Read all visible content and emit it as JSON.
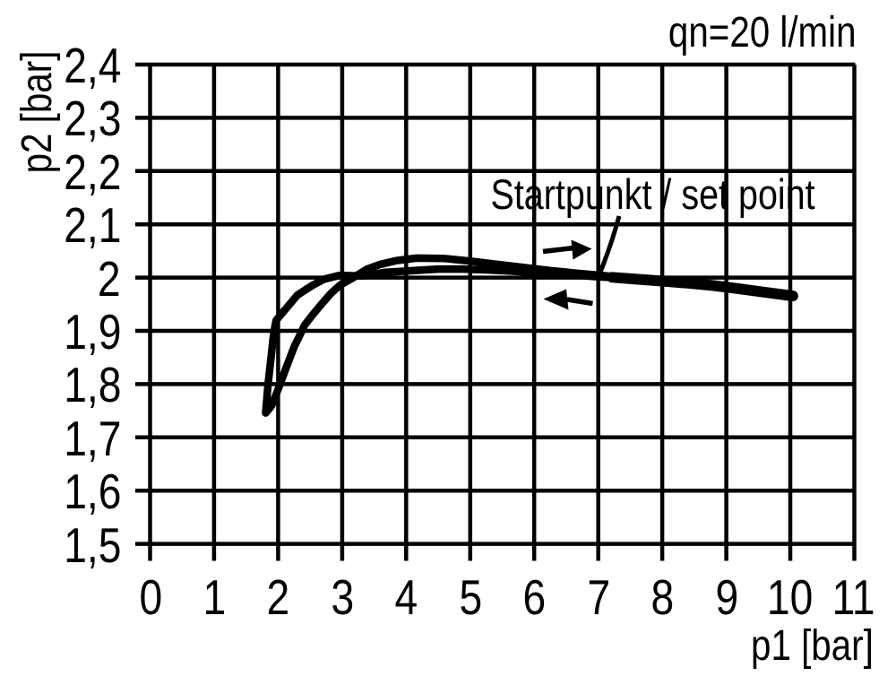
{
  "chart_data": {
    "type": "line",
    "title": "",
    "xlabel": "p1 [bar]",
    "ylabel": "p2 [bar]",
    "flow_label": "qn=20 l/min",
    "xlim": [
      0,
      11
    ],
    "ylim": [
      1.5,
      2.4
    ],
    "grid": true,
    "xticks": {
      "values": [
        0,
        1,
        2,
        3,
        4,
        5,
        6,
        7,
        8,
        9,
        10,
        11
      ],
      "labels": [
        "0",
        "1",
        "2",
        "3",
        "4",
        "5",
        "6",
        "7",
        "8",
        "9",
        "10",
        "11"
      ]
    },
    "yticks": {
      "values": [
        2.4,
        2.3,
        2.2,
        2.1,
        2.0,
        1.9,
        1.8,
        1.7,
        1.6,
        1.5
      ],
      "labels": [
        "2,4",
        "2,3",
        "2,2",
        "2,1",
        "2",
        "1,9",
        "1,8",
        "1,7",
        "1,6",
        "1,5"
      ]
    },
    "annotations": [
      {
        "text": "Startpunkt / set point",
        "points_to": {
          "p1": 7.0,
          "p2": 2.0
        }
      },
      {
        "type": "arrow",
        "direction": "right",
        "meaning": "p1 increasing",
        "at": {
          "p1": 6.5,
          "p2": 2.05
        }
      },
      {
        "type": "arrow",
        "direction": "left",
        "meaning": "p1 decreasing",
        "at": {
          "p1": 6.5,
          "p2": 1.955
        }
      }
    ],
    "series": [
      {
        "name": "p1 increasing branch (arrow right)",
        "points": [
          [
            1.805,
            1.746
          ],
          [
            1.85,
            1.752
          ],
          [
            1.9,
            1.76
          ],
          [
            1.97,
            1.781
          ],
          [
            2.04,
            1.803
          ],
          [
            2.11,
            1.826
          ],
          [
            2.18,
            1.848
          ],
          [
            2.25,
            1.87
          ],
          [
            2.32,
            1.887
          ],
          [
            2.41,
            1.91
          ],
          [
            2.53,
            1.929
          ],
          [
            2.67,
            1.949
          ],
          [
            2.83,
            1.971
          ],
          [
            2.97,
            1.986
          ],
          [
            3.16,
            1.999
          ],
          [
            3.39,
            2.016
          ],
          [
            3.6,
            2.025
          ],
          [
            3.85,
            2.032
          ],
          [
            4.16,
            2.0365
          ],
          [
            4.58,
            2.036
          ],
          [
            5.0,
            2.031
          ],
          [
            5.42,
            2.025
          ],
          [
            5.84,
            2.019
          ],
          [
            6.26,
            2.013
          ],
          [
            6.68,
            2.008
          ],
          [
            7.06,
            2.004
          ],
          [
            7.29,
            2.0015
          ]
        ]
      },
      {
        "name": "p1 decreasing branch (arrow left)",
        "points": [
          [
            7.28,
            1.9995
          ],
          [
            7.0,
            2.0015
          ],
          [
            6.65,
            2.0045
          ],
          [
            6.3,
            2.0075
          ],
          [
            5.95,
            2.01
          ],
          [
            5.6,
            2.0125
          ],
          [
            5.25,
            2.0145
          ],
          [
            4.9,
            2.016
          ],
          [
            4.5,
            2.016
          ],
          [
            4.1,
            2.013
          ],
          [
            3.67,
            2.01
          ],
          [
            3.32,
            2.003
          ],
          [
            2.95,
            2.004
          ],
          [
            2.72,
            1.997
          ],
          [
            2.53,
            1.985
          ],
          [
            2.3,
            1.967
          ],
          [
            2.11,
            1.94
          ],
          [
            1.97,
            1.92
          ],
          [
            1.95,
            1.908
          ],
          [
            1.92,
            1.884
          ],
          [
            1.88,
            1.839
          ],
          [
            1.84,
            1.797
          ],
          [
            1.805,
            1.746
          ]
        ]
      },
      {
        "name": "common segment 7.3-10 bar",
        "points": [
          [
            7.22,
            2.0005
          ],
          [
            7.6,
            1.997
          ],
          [
            8.0,
            1.9935
          ],
          [
            8.4,
            1.9895
          ],
          [
            8.8,
            1.985
          ],
          [
            9.2,
            1.979
          ],
          [
            9.6,
            1.9725
          ],
          [
            10.04,
            1.9655
          ]
        ]
      }
    ]
  }
}
